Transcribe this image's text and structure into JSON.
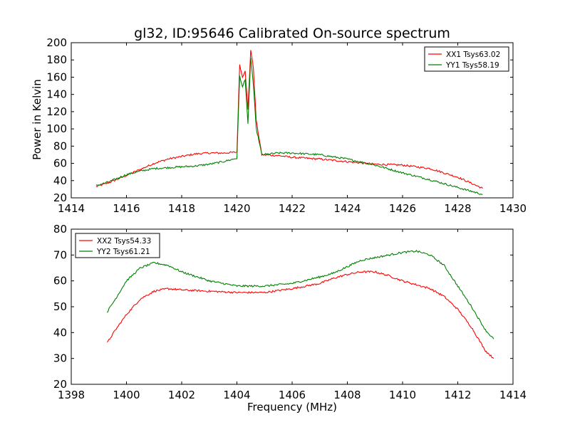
{
  "figure": {
    "title": "gl32, ID:95646 Calibrated On-source spectrum",
    "ylabel": "Power in Kelvin",
    "xlabel": "Frequency (MHz)"
  },
  "chart_data": [
    {
      "type": "line",
      "xlim": [
        1414,
        1430
      ],
      "ylim": [
        20,
        200
      ],
      "xticks": [
        1414,
        1416,
        1418,
        1420,
        1422,
        1424,
        1426,
        1428,
        1430
      ],
      "yticks": [
        20,
        40,
        60,
        80,
        100,
        120,
        140,
        160,
        180,
        200
      ],
      "legend": "top-right",
      "series": [
        {
          "name": "XX1 Tsys63.02",
          "color": "#ff0000",
          "points": [
            [
              1414.9,
              33
            ],
            [
              1415.4,
              38
            ],
            [
              1416.0,
              46
            ],
            [
              1416.5,
              53
            ],
            [
              1417.0,
              60
            ],
            [
              1417.5,
              65
            ],
            [
              1418.0,
              68
            ],
            [
              1418.5,
              71
            ],
            [
              1419.0,
              72
            ],
            [
              1419.5,
              72
            ],
            [
              1420.0,
              73
            ],
            [
              1420.1,
              175
            ],
            [
              1420.2,
              160
            ],
            [
              1420.3,
              168
            ],
            [
              1420.4,
              122
            ],
            [
              1420.5,
              192
            ],
            [
              1420.6,
              170
            ],
            [
              1420.7,
              110
            ],
            [
              1420.8,
              90
            ],
            [
              1420.9,
              70
            ],
            [
              1421.5,
              69
            ],
            [
              1422.0,
              67
            ],
            [
              1423.0,
              65
            ],
            [
              1424.0,
              62
            ],
            [
              1425.0,
              59
            ],
            [
              1426.0,
              58
            ],
            [
              1427.0,
              54
            ],
            [
              1428.0,
              44
            ],
            [
              1428.9,
              31
            ]
          ]
        },
        {
          "name": "YY1 Tsys58.19",
          "color": "#008000",
          "points": [
            [
              1414.9,
              34
            ],
            [
              1415.4,
              39
            ],
            [
              1416.0,
              47
            ],
            [
              1416.5,
              51
            ],
            [
              1417.0,
              54
            ],
            [
              1417.5,
              55
            ],
            [
              1418.0,
              56
            ],
            [
              1418.5,
              57
            ],
            [
              1419.0,
              59
            ],
            [
              1419.5,
              62
            ],
            [
              1420.0,
              66
            ],
            [
              1420.1,
              162
            ],
            [
              1420.2,
              148
            ],
            [
              1420.3,
              158
            ],
            [
              1420.4,
              105
            ],
            [
              1420.5,
              183
            ],
            [
              1420.6,
              150
            ],
            [
              1420.7,
              100
            ],
            [
              1420.8,
              86
            ],
            [
              1420.9,
              70
            ],
            [
              1421.5,
              72
            ],
            [
              1422.0,
              72
            ],
            [
              1423.0,
              70
            ],
            [
              1424.0,
              65
            ],
            [
              1425.0,
              58
            ],
            [
              1426.0,
              49
            ],
            [
              1427.0,
              41
            ],
            [
              1428.0,
              32
            ],
            [
              1428.9,
              24
            ]
          ]
        }
      ]
    },
    {
      "type": "line",
      "xlim": [
        1398,
        1414
      ],
      "ylim": [
        20,
        80
      ],
      "xticks": [
        1398,
        1400,
        1402,
        1404,
        1406,
        1408,
        1410,
        1412,
        1414
      ],
      "yticks": [
        20,
        30,
        40,
        50,
        60,
        70,
        80
      ],
      "legend": "top-left",
      "series": [
        {
          "name": "XX2 Tsys54.33",
          "color": "#ff0000",
          "points": [
            [
              1399.3,
              36
            ],
            [
              1399.6,
              41
            ],
            [
              1400.0,
              47
            ],
            [
              1400.5,
              53
            ],
            [
              1401.0,
              56
            ],
            [
              1401.5,
              57
            ],
            [
              1402.0,
              56.5
            ],
            [
              1403.0,
              56
            ],
            [
              1404.0,
              55.5
            ],
            [
              1405.0,
              55.5
            ],
            [
              1406.0,
              57
            ],
            [
              1407.0,
              59
            ],
            [
              1407.5,
              61
            ],
            [
              1408.0,
              62.5
            ],
            [
              1408.5,
              63.5
            ],
            [
              1409.0,
              63.5
            ],
            [
              1409.5,
              62
            ],
            [
              1410.0,
              60
            ],
            [
              1410.5,
              58.5
            ],
            [
              1411.0,
              57
            ],
            [
              1411.5,
              54
            ],
            [
              1412.0,
              49
            ],
            [
              1412.5,
              42
            ],
            [
              1413.0,
              33
            ],
            [
              1413.3,
              30
            ]
          ]
        },
        {
          "name": "YY2 Tsys61.21",
          "color": "#008000",
          "points": [
            [
              1399.3,
              48
            ],
            [
              1399.6,
              53
            ],
            [
              1400.0,
              60
            ],
            [
              1400.5,
              65
            ],
            [
              1401.0,
              67
            ],
            [
              1401.5,
              66
            ],
            [
              1402.0,
              63.5
            ],
            [
              1403.0,
              60
            ],
            [
              1404.0,
              58
            ],
            [
              1405.0,
              58
            ],
            [
              1406.0,
              59
            ],
            [
              1407.0,
              61.5
            ],
            [
              1407.5,
              63
            ],
            [
              1408.0,
              65.5
            ],
            [
              1408.5,
              68
            ],
            [
              1409.0,
              69
            ],
            [
              1409.5,
              70
            ],
            [
              1410.0,
              71
            ],
            [
              1410.5,
              71.5
            ],
            [
              1411.0,
              70
            ],
            [
              1411.5,
              66
            ],
            [
              1412.0,
              58
            ],
            [
              1412.5,
              50
            ],
            [
              1413.0,
              41
            ],
            [
              1413.3,
              37.5
            ]
          ]
        }
      ]
    }
  ]
}
